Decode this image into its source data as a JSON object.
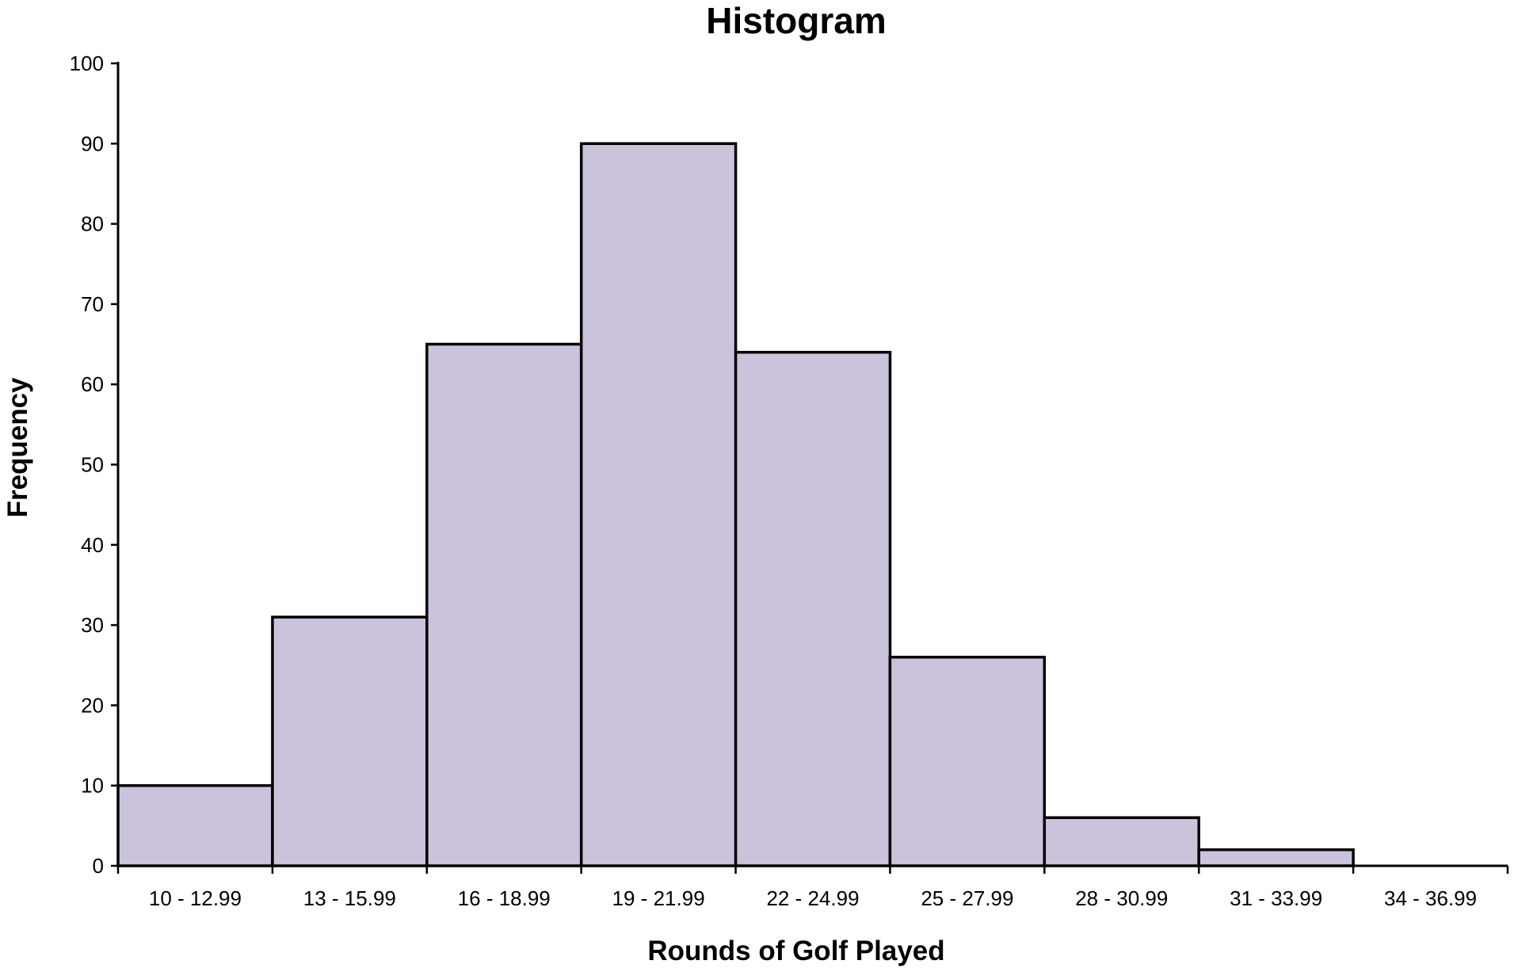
{
  "chart_data": {
    "type": "bar",
    "title": "Histogram",
    "xlabel": "Rounds of Golf Played",
    "ylabel": "Frequency",
    "categories": [
      "10 - 12.99",
      "13 - 15.99",
      "16 - 18.99",
      "19 - 21.99",
      "22 - 24.99",
      "25 - 27.99",
      "28 - 30.99",
      "31 - 33.99",
      "34 - 36.99"
    ],
    "values": [
      10,
      31,
      65,
      90,
      64,
      26,
      6,
      2,
      0
    ],
    "ylim": [
      0,
      100
    ],
    "yticks": [
      0,
      10,
      20,
      30,
      40,
      50,
      60,
      70,
      80,
      90,
      100
    ],
    "grid": false,
    "legend": "none",
    "bar_color": "#CBC2DC",
    "bar_edge_color": "#000000"
  }
}
